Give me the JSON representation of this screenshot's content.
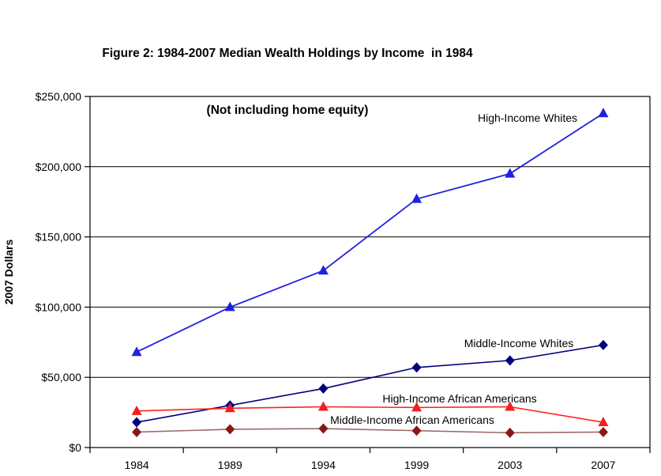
{
  "figure": {
    "title_line1": "Figure 2: 1984-2007 Median Wealth Holdings by Income  in 1984",
    "title_line2": "(Not including home equity)"
  },
  "chart_data": {
    "type": "line",
    "title": "Figure 2: 1984-2007 Median Wealth Holdings by Income in 1984 (Not including home equity)",
    "xlabel": "",
    "ylabel": "2007 Dollars",
    "ylim": [
      0,
      250000
    ],
    "ytick_step": 50000,
    "ytick_labels": [
      "$0",
      "$50,000",
      "$100,000",
      "$150,000",
      "$200,000",
      "$250,000"
    ],
    "categories": [
      "1984",
      "1989",
      "1994",
      "1999",
      "2003",
      "2007"
    ],
    "grid": "horizontal",
    "legend_position": "inline-annotations",
    "series": [
      {
        "name": "High-Income Whites",
        "values": [
          68000,
          100000,
          126000,
          177000,
          195000,
          238000
        ],
        "marker": "triangle",
        "line_color": "#2020df",
        "marker_color": "#2020df",
        "line_width": 1.8
      },
      {
        "name": "Middle-Income Whites",
        "values": [
          18000,
          30000,
          42000,
          57000,
          62000,
          73000
        ],
        "marker": "diamond",
        "line_color": "#000080",
        "marker_color": "#000080",
        "line_width": 1.6
      },
      {
        "name": "High-Income African Americans",
        "values": [
          26000,
          28000,
          29000,
          28500,
          29000,
          18000
        ],
        "marker": "triangle",
        "line_color": "#ff2020",
        "marker_color": "#f02020",
        "line_width": 1.6
      },
      {
        "name": "Middle-Income African Americans",
        "values": [
          11000,
          13000,
          13500,
          12000,
          10500,
          11000
        ],
        "marker": "diamond",
        "line_color": "#9c6b6b",
        "marker_color": "#8b1616",
        "line_width": 1.6
      }
    ]
  }
}
